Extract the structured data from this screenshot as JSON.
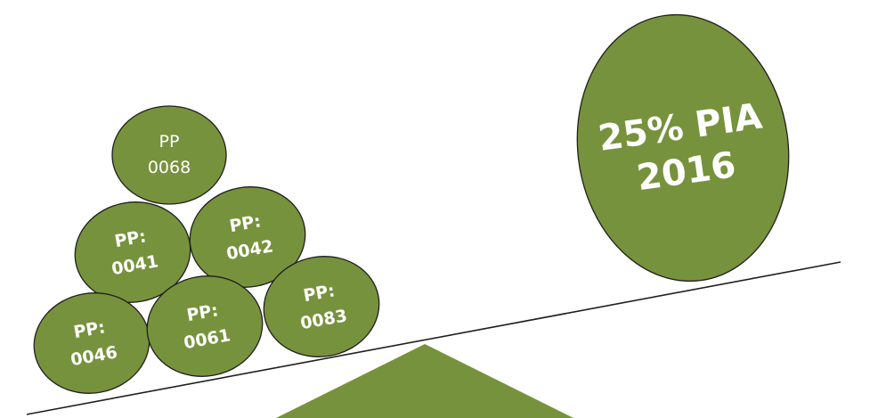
{
  "balls": [
    {
      "id": "pp-0068",
      "line1": "PP",
      "line2": "0068",
      "bold": false
    },
    {
      "id": "pp-0041",
      "line1": "PP:",
      "line2": "0041",
      "bold": true
    },
    {
      "id": "pp-0042",
      "line1": "PP:",
      "line2": "0042",
      "bold": true
    },
    {
      "id": "pp-0046",
      "line1": "PP:",
      "line2": "0046",
      "bold": true
    },
    {
      "id": "pp-0061",
      "line1": "PP:",
      "line2": "0061",
      "bold": true
    },
    {
      "id": "pp-0083",
      "line1": "PP:",
      "line2": "0083",
      "bold": true
    }
  ],
  "counterweight": {
    "line1": "25% PIA",
    "line2": "2016"
  },
  "colors": {
    "fill": "#77923c",
    "outline": "#1f1f1f",
    "text": "#ffffff"
  }
}
